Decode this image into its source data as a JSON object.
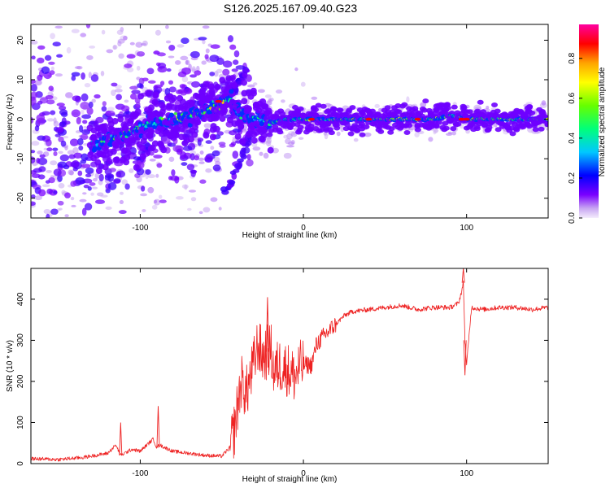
{
  "title": "S126.2025.167.09.40.G23",
  "chart_data": [
    {
      "type": "heatmap",
      "xlabel": "Height of straight line (km)",
      "ylabel": "Frequency (Hz)",
      "xlim": [
        -167,
        150
      ],
      "ylim": [
        -25,
        24
      ],
      "x_ticks": [
        -100,
        0,
        100
      ],
      "y_ticks": [
        -20,
        -10,
        0,
        10,
        20
      ],
      "grid": false,
      "colorbar": {
        "label": "Normalized spectral amplitude",
        "range": [
          0,
          0.97
        ],
        "ticks": [
          "0.0",
          "0.2",
          "0.4",
          "0.6",
          "0.8"
        ],
        "colormap": [
          "#e8d6f8",
          "#7a00ff",
          "#0000ff",
          "#00c8ff",
          "#00ff7a",
          "#66ff00",
          "#ffff00",
          "#ffa500",
          "#ff0000",
          "#ff00a0"
        ]
      },
      "ridge": [
        {
          "x": -130,
          "y": -7,
          "amp": 0.45
        },
        {
          "x": -120,
          "y": -5,
          "amp": 0.5
        },
        {
          "x": -110,
          "y": -4,
          "amp": 0.55
        },
        {
          "x": -100,
          "y": -2,
          "amp": 0.55
        },
        {
          "x": -90,
          "y": -1,
          "amp": 0.55
        },
        {
          "x": -80,
          "y": 0,
          "amp": 0.6
        },
        {
          "x": -70,
          "y": 1,
          "amp": 0.65
        },
        {
          "x": -60,
          "y": 2,
          "amp": 0.7
        },
        {
          "x": -50,
          "y": 4,
          "amp": 0.75
        },
        {
          "x": -45,
          "y": 5,
          "amp": 0.6
        },
        {
          "x": -40,
          "y": 2,
          "amp": 0.45
        },
        {
          "x": -30,
          "y": 0,
          "amp": 0.5
        },
        {
          "x": -20,
          "y": -1,
          "amp": 0.55
        },
        {
          "x": -10,
          "y": 0,
          "amp": 0.6
        },
        {
          "x": 0,
          "y": 0,
          "amp": 0.65
        },
        {
          "x": 20,
          "y": 0,
          "amp": 0.7
        },
        {
          "x": 40,
          "y": 0,
          "amp": 0.8
        },
        {
          "x": 60,
          "y": 0,
          "amp": 0.75
        },
        {
          "x": 80,
          "y": 0,
          "amp": 0.75
        },
        {
          "x": 90,
          "y": 1,
          "amp": 0.6
        },
        {
          "x": 100,
          "y": 0,
          "amp": 0.95
        },
        {
          "x": 120,
          "y": 0,
          "amp": 0.7
        },
        {
          "x": 150,
          "y": 0,
          "amp": 0.65
        }
      ],
      "branches": [
        {
          "x": [
            -48,
            -44,
            -40,
            -37,
            -35
          ],
          "y": [
            4,
            7,
            9,
            11,
            12
          ]
        },
        {
          "x": [
            -48,
            -44,
            -40,
            -35,
            -30
          ],
          "y": [
            -19,
            -16,
            -12,
            -7,
            -3
          ]
        }
      ]
    },
    {
      "type": "line",
      "xlabel": "Height of straight line (km)",
      "ylabel": "SNR (10 * v/v)",
      "xlim": [
        -167,
        150
      ],
      "ylim": [
        0,
        475
      ],
      "x_ticks": [
        -100,
        0,
        100
      ],
      "y_ticks": [
        0,
        100,
        200,
        300,
        400
      ],
      "grid": false,
      "color": "#ee2222",
      "series": [
        {
          "x": [
            -167,
            -150,
            -135,
            -120,
            -115,
            -112,
            -105,
            -100,
            -92,
            -90,
            -88,
            -80,
            -70,
            -60,
            -50,
            -45,
            -42,
            -40,
            -38,
            -35,
            -30,
            -28,
            -25,
            -20,
            -18,
            -15,
            -10,
            -5,
            -3,
            0,
            5,
            8,
            10,
            15,
            20,
            25,
            30,
            40,
            50,
            60,
            70,
            80,
            90,
            95,
            97,
            98,
            99,
            100,
            103,
            110,
            120,
            130,
            140,
            150
          ],
          "y": [
            12,
            10,
            15,
            25,
            45,
            20,
            35,
            30,
            60,
            40,
            45,
            30,
            25,
            20,
            18,
            40,
            90,
            150,
            200,
            170,
            250,
            290,
            260,
            280,
            220,
            240,
            230,
            210,
            230,
            240,
            240,
            290,
            300,
            320,
            340,
            360,
            370,
            375,
            380,
            385,
            375,
            380,
            380,
            390,
            420,
            440,
            300,
            240,
            380,
            375,
            380,
            380,
            375,
            380
          ]
        }
      ],
      "annotations": [
        {
          "x": -112,
          "y": 100
        },
        {
          "x": -89,
          "y": 140
        },
        {
          "x": -22,
          "y": 405
        },
        {
          "x": 98,
          "y": 475
        },
        {
          "x": 99,
          "y": 215
        }
      ]
    }
  ]
}
